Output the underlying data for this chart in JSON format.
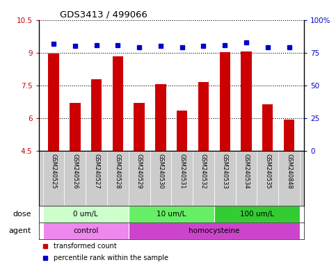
{
  "title": "GDS3413 / 499066",
  "samples": [
    "GSM240525",
    "GSM240526",
    "GSM240527",
    "GSM240528",
    "GSM240529",
    "GSM240530",
    "GSM240531",
    "GSM240532",
    "GSM240533",
    "GSM240534",
    "GSM240535",
    "GSM240848"
  ],
  "bar_values": [
    8.95,
    6.7,
    7.8,
    8.85,
    6.7,
    7.55,
    6.35,
    7.65,
    9.02,
    9.05,
    6.65,
    5.95
  ],
  "dot_values": [
    82,
    80,
    81,
    81,
    79,
    80,
    79,
    80,
    81,
    83,
    79,
    79
  ],
  "ylim_left": [
    4.5,
    10.5
  ],
  "ylim_right": [
    0,
    100
  ],
  "yticks_left": [
    4.5,
    6.0,
    7.5,
    9.0,
    10.5
  ],
  "yticks_right": [
    0,
    25,
    50,
    75,
    100
  ],
  "ytick_labels_left": [
    "4.5",
    "6",
    "7.5",
    "9",
    "10.5"
  ],
  "ytick_labels_right": [
    "0",
    "25",
    "50",
    "75",
    "100%"
  ],
  "bar_color": "#cc0000",
  "dot_color": "#0000cc",
  "grid_color": "#000000",
  "sample_bg_color": "#cccccc",
  "dose_groups": [
    {
      "label": "0 um/L",
      "start": 0,
      "end": 4,
      "color": "#ccffcc"
    },
    {
      "label": "10 um/L",
      "start": 4,
      "end": 8,
      "color": "#66ee66"
    },
    {
      "label": "100 um/L",
      "start": 8,
      "end": 12,
      "color": "#33cc33"
    }
  ],
  "agent_groups": [
    {
      "label": "control",
      "start": 0,
      "end": 4,
      "color": "#ee88ee"
    },
    {
      "label": "homocysteine",
      "start": 4,
      "end": 12,
      "color": "#cc44cc"
    }
  ],
  "legend_items": [
    {
      "color": "#cc0000",
      "label": "transformed count"
    },
    {
      "color": "#0000cc",
      "label": "percentile rank within the sample"
    }
  ],
  "xlabel_dose": "dose",
  "xlabel_agent": "agent",
  "background_color": "#ffffff",
  "plot_bg_color": "#ffffff"
}
